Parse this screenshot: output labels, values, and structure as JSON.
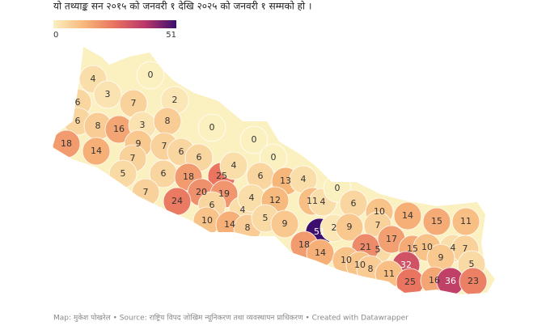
{
  "subtitle": "यो तथ्याङ्क सन २०१५ को जनवरी १ देखि २०२५ को जनवरी १ सम्मको हो ।",
  "legend": {
    "min": 0,
    "max": 51,
    "colors": [
      "#fbf0c0",
      "#f7b77a",
      "#e8725f",
      "#b8356a",
      "#3c0f6e"
    ]
  },
  "districts": [
    4,
    0,
    3,
    7,
    2,
    6,
    6,
    8,
    16,
    3,
    8,
    0,
    0,
    18,
    14,
    9,
    7,
    6,
    7,
    6,
    0,
    5,
    6,
    18,
    25,
    4,
    6,
    13,
    4,
    7,
    20,
    19,
    24,
    6,
    4,
    4,
    12,
    11,
    4,
    0,
    6,
    10,
    14,
    15,
    11,
    10,
    14,
    8,
    5,
    9,
    51,
    2,
    9,
    7,
    5,
    17,
    15,
    10,
    4,
    7,
    18,
    14,
    21,
    9,
    10,
    10,
    8,
    32,
    5,
    11,
    25,
    16,
    36,
    23
  ],
  "footer": "Map: मुकेश पोखरेल • Source: राष्ट्रिय विपद जोखिम न्यूनिकरण तथा व्यवस्थापन प्राधिकरण • Created with Datawrapper"
}
